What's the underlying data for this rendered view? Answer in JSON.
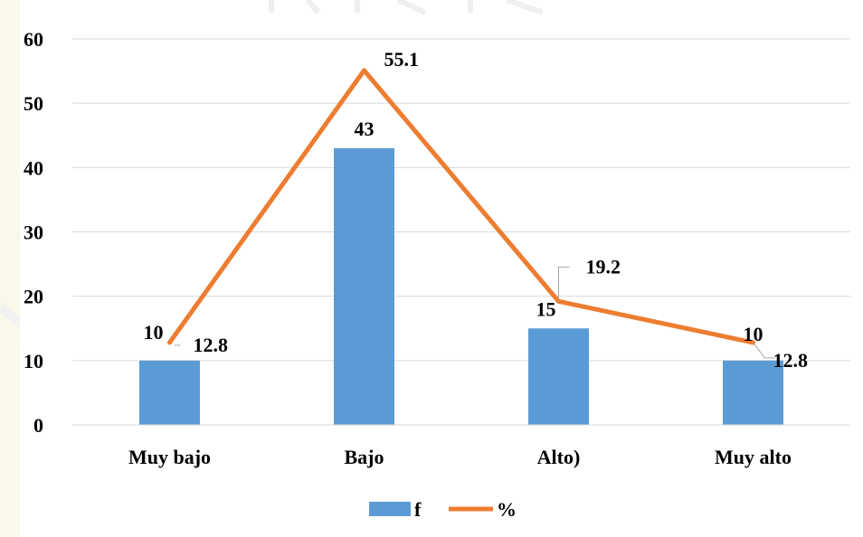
{
  "chart_data": {
    "type": "bar",
    "categories": [
      "Muy bajo",
      "Bajo",
      "Alto)",
      "Muy alto"
    ],
    "series": [
      {
        "name": "f",
        "kind": "bar",
        "color": "#5b9bd5",
        "values": [
          10,
          43,
          15,
          10
        ]
      },
      {
        "name": "%",
        "kind": "line",
        "color": "#ed7d31",
        "values": [
          12.8,
          55.1,
          19.2,
          12.8
        ]
      }
    ],
    "bar_labels": [
      "10",
      "43",
      "15",
      "10"
    ],
    "line_labels": [
      "12.8",
      "55.1",
      "19.2",
      "12.8"
    ],
    "yticks": [
      "0",
      "10",
      "20",
      "30",
      "40",
      "50",
      "60"
    ],
    "ylim": [
      0,
      60
    ],
    "grid": true,
    "legend": "bottom"
  }
}
